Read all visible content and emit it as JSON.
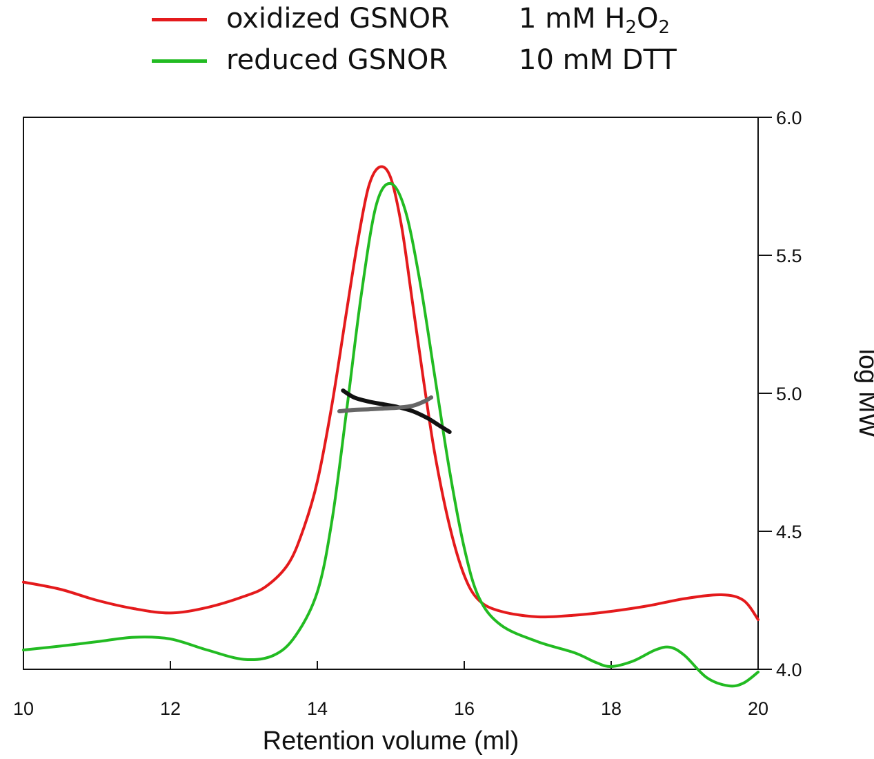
{
  "chart_data": {
    "type": "line",
    "title": "",
    "xlabel": "Retention volume (ml)",
    "ylabel": "",
    "y2label": "log MW",
    "xlim": [
      10,
      20
    ],
    "ylim": [
      0,
      1
    ],
    "y2lim": [
      4.0,
      6.0
    ],
    "xticks": [
      "10",
      "12",
      "14",
      "16",
      "18",
      "20"
    ],
    "y2ticks": [
      "4.0",
      "4.5",
      "5.0",
      "5.5",
      "6.0"
    ],
    "legend": [
      {
        "label": "oxidized GSNOR",
        "condition_main": "1 mM H",
        "condition_sub1": "2",
        "condition_mid": "O",
        "condition_sub2": "2",
        "color": "#e41a1c"
      },
      {
        "label": "reduced GSNOR",
        "condition_main": "10 mM DTT",
        "color": "#22bb22"
      }
    ],
    "series": [
      {
        "name": "oxidized GSNOR",
        "color": "#e41a1c",
        "axis": "left",
        "x": [
          10.0,
          10.5,
          11.0,
          11.5,
          12.0,
          12.5,
          13.0,
          13.3,
          13.6,
          13.8,
          14.0,
          14.2,
          14.4,
          14.55,
          14.7,
          14.85,
          15.0,
          15.15,
          15.3,
          15.45,
          15.6,
          15.8,
          16.0,
          16.2,
          16.5,
          17.0,
          17.5,
          18.0,
          18.5,
          19.0,
          19.5,
          19.8,
          20.0
        ],
        "y": [
          0.158,
          0.145,
          0.125,
          0.11,
          0.102,
          0.112,
          0.132,
          0.15,
          0.19,
          0.25,
          0.34,
          0.48,
          0.65,
          0.775,
          0.875,
          0.91,
          0.89,
          0.8,
          0.66,
          0.52,
          0.39,
          0.26,
          0.17,
          0.125,
          0.105,
          0.095,
          0.098,
          0.105,
          0.115,
          0.128,
          0.135,
          0.125,
          0.09
        ]
      },
      {
        "name": "reduced GSNOR",
        "color": "#22bb22",
        "axis": "left",
        "x": [
          10.0,
          10.5,
          11.0,
          11.5,
          12.0,
          12.5,
          13.0,
          13.4,
          13.7,
          14.0,
          14.2,
          14.4,
          14.6,
          14.8,
          15.0,
          15.2,
          15.4,
          15.6,
          15.8,
          16.0,
          16.2,
          16.5,
          17.0,
          17.5,
          17.8,
          18.0,
          18.3,
          18.6,
          18.8,
          19.0,
          19.3,
          19.6,
          19.8,
          20.0
        ],
        "y": [
          0.035,
          0.042,
          0.05,
          0.058,
          0.055,
          0.035,
          0.018,
          0.025,
          0.06,
          0.14,
          0.27,
          0.47,
          0.68,
          0.84,
          0.88,
          0.83,
          0.7,
          0.53,
          0.36,
          0.22,
          0.13,
          0.08,
          0.05,
          0.03,
          0.012,
          0.005,
          0.015,
          0.035,
          0.04,
          0.025,
          -0.015,
          -0.03,
          -0.025,
          -0.005
        ]
      },
      {
        "name": "log MW (oxidized)",
        "color": "#111111",
        "axis": "right",
        "x": [
          14.35,
          14.5,
          14.7,
          14.9,
          15.1,
          15.3,
          15.5,
          15.65,
          15.8
        ],
        "y": [
          5.01,
          4.985,
          4.97,
          4.96,
          4.95,
          4.935,
          4.91,
          4.885,
          4.86
        ]
      },
      {
        "name": "log MW (reduced)",
        "color": "#666666",
        "axis": "right",
        "x": [
          14.3,
          14.5,
          14.7,
          14.9,
          15.1,
          15.3,
          15.45,
          15.55
        ],
        "y": [
          4.935,
          4.94,
          4.942,
          4.945,
          4.948,
          4.955,
          4.97,
          4.985
        ]
      }
    ]
  }
}
